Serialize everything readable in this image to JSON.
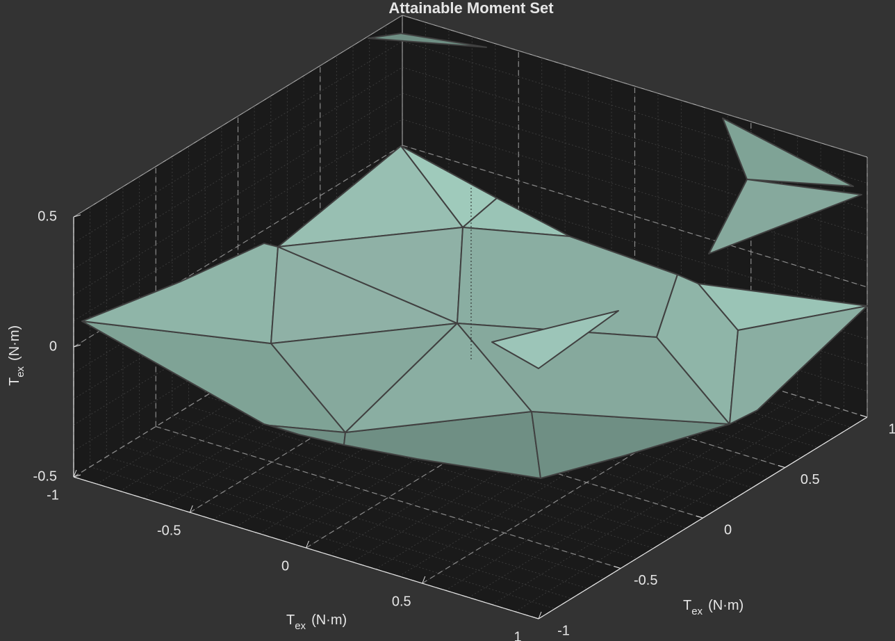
{
  "chart_data": {
    "type": "surface3d",
    "title": "Attainable Moment Set",
    "xlabel": {
      "base": "T",
      "sub": "ex",
      "unit": "(N·m)"
    },
    "ylabel": {
      "base": "T",
      "sub": "ex",
      "unit": "(N·m)"
    },
    "zlabel": {
      "base": "T",
      "sub": "ex",
      "unit": "(N·m)"
    },
    "xlim": [
      -1,
      1
    ],
    "xticks": [
      -1,
      -0.5,
      0,
      0.5,
      1
    ],
    "ylim": [
      -1,
      1
    ],
    "yticks": [
      -1,
      -0.5,
      0,
      0.5,
      1
    ],
    "zlim": [
      -0.5,
      0.5
    ],
    "zticks": [
      -0.5,
      0,
      0.5
    ],
    "grid": true,
    "color": "#9cc5b8"
  }
}
